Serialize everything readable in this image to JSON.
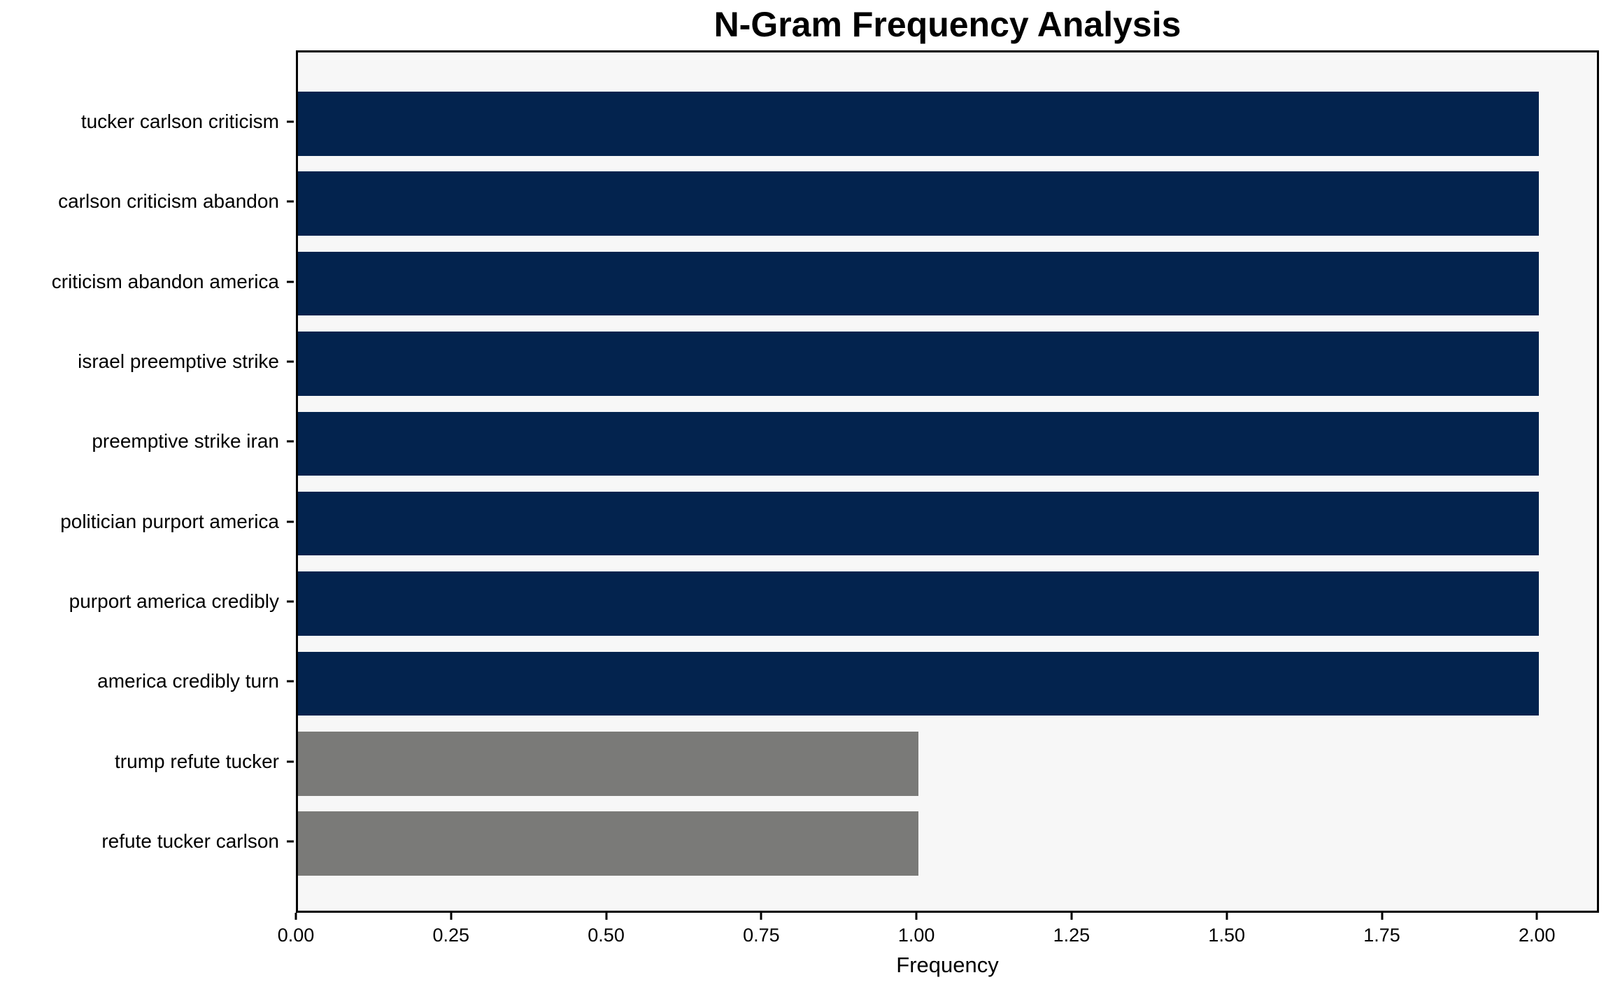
{
  "chart_data": {
    "type": "bar",
    "orientation": "horizontal",
    "title": "N-Gram Frequency Analysis",
    "xlabel": "Frequency",
    "ylabel": "",
    "categories": [
      "tucker carlson criticism",
      "carlson criticism abandon",
      "criticism abandon america",
      "israel preemptive strike",
      "preemptive strike iran",
      "politician purport america",
      "purport america credibly",
      "america credibly turn",
      "trump refute tucker",
      "refute tucker carlson"
    ],
    "values": [
      2,
      2,
      2,
      2,
      2,
      2,
      2,
      2,
      1,
      1
    ],
    "bar_colors": [
      "#03234e",
      "#03234e",
      "#03234e",
      "#03234e",
      "#03234e",
      "#03234e",
      "#03234e",
      "#03234e",
      "#7a7a78",
      "#7a7a78"
    ],
    "xlim": [
      0,
      2.1
    ],
    "xticks": [
      0.0,
      0.25,
      0.5,
      0.75,
      1.0,
      1.25,
      1.5,
      1.75,
      2.0
    ],
    "xtick_labels": [
      "0.00",
      "0.25",
      "0.50",
      "0.75",
      "1.00",
      "1.25",
      "1.50",
      "1.75",
      "2.00"
    ],
    "grid": false,
    "legend": null,
    "bar_height_fraction": 0.8,
    "colors": {
      "frequent_bar": "#03234e",
      "infrequent_bar": "#7a7a78",
      "plot_background": "#f7f7f7",
      "figure_background": "#ffffff",
      "spine": "#000000",
      "text": "#000000"
    }
  }
}
